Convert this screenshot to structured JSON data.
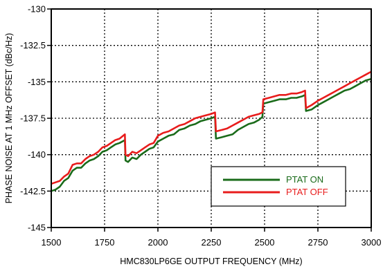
{
  "chart_data": {
    "type": "line",
    "xlabel": "HMC830LP6GE OUTPUT FREQUENCY (MHz)",
    "ylabel": "PHASE NOISE AT 1 MHz OFFSET (dBc/Hz)",
    "xlim": [
      1500,
      3000
    ],
    "ylim": [
      -145,
      -130
    ],
    "x_ticks": [
      1500,
      1750,
      2000,
      2250,
      2500,
      2750,
      3000
    ],
    "y_ticks": [
      -130,
      -132.5,
      -135,
      -137.5,
      -140,
      -142.5,
      -145
    ],
    "x_tick_labels": [
      "1500",
      "1750",
      "2000",
      "2250",
      "2500",
      "2750",
      "3000"
    ],
    "y_tick_labels": [
      "-130",
      "-132.5",
      "-135",
      "-137.5",
      "-140",
      "-142.5",
      "-145"
    ],
    "grid": true,
    "grid_style": "dotted",
    "legend_position": "lower-right",
    "series": [
      {
        "name": "PTAT ON",
        "color": "#1a6b1a",
        "x": [
          1500,
          1520,
          1540,
          1560,
          1580,
          1600,
          1620,
          1640,
          1660,
          1680,
          1700,
          1720,
          1740,
          1760,
          1780,
          1800,
          1820,
          1845,
          1848,
          1860,
          1880,
          1900,
          1920,
          1940,
          1960,
          1980,
          2000,
          2025,
          2050,
          2075,
          2100,
          2125,
          2150,
          2175,
          2200,
          2225,
          2250,
          2268,
          2272,
          2300,
          2325,
          2350,
          2375,
          2400,
          2425,
          2450,
          2475,
          2490,
          2494,
          2520,
          2545,
          2570,
          2600,
          2625,
          2650,
          2675,
          2690,
          2694,
          2720,
          2750,
          2775,
          2800,
          2825,
          2850,
          2875,
          2900,
          2925,
          2950,
          2975,
          3000
        ],
        "values": [
          -142.5,
          -142.4,
          -142.2,
          -141.8,
          -141.6,
          -141.1,
          -140.9,
          -140.9,
          -140.6,
          -140.4,
          -140.3,
          -140.1,
          -139.8,
          -139.7,
          -139.5,
          -139.3,
          -139.2,
          -139.0,
          -140.4,
          -140.5,
          -140.2,
          -140.3,
          -140.0,
          -139.8,
          -139.6,
          -139.5,
          -139.1,
          -138.9,
          -138.7,
          -138.6,
          -138.3,
          -138.2,
          -138.0,
          -137.9,
          -137.7,
          -137.6,
          -137.5,
          -137.4,
          -138.9,
          -138.8,
          -138.7,
          -138.6,
          -138.3,
          -138.1,
          -137.9,
          -137.8,
          -137.6,
          -137.4,
          -136.5,
          -136.4,
          -136.3,
          -136.2,
          -136.2,
          -136.1,
          -136.1,
          -136.0,
          -135.9,
          -137.0,
          -136.9,
          -136.6,
          -136.4,
          -136.2,
          -136.0,
          -135.8,
          -135.6,
          -135.5,
          -135.3,
          -135.1,
          -134.9,
          -134.8
        ]
      },
      {
        "name": "PTAT OFF",
        "color": "#e81c1c",
        "x": [
          1500,
          1520,
          1540,
          1560,
          1580,
          1600,
          1620,
          1640,
          1660,
          1680,
          1700,
          1720,
          1740,
          1760,
          1780,
          1800,
          1820,
          1845,
          1848,
          1860,
          1880,
          1900,
          1920,
          1940,
          1960,
          1980,
          2000,
          2025,
          2050,
          2075,
          2100,
          2125,
          2150,
          2175,
          2200,
          2225,
          2250,
          2268,
          2272,
          2300,
          2325,
          2350,
          2375,
          2400,
          2425,
          2450,
          2475,
          2490,
          2494,
          2520,
          2545,
          2570,
          2600,
          2625,
          2650,
          2675,
          2690,
          2694,
          2720,
          2750,
          2775,
          2800,
          2825,
          2850,
          2875,
          2900,
          2925,
          2950,
          2975,
          3000
        ],
        "values": [
          -142.0,
          -141.9,
          -141.8,
          -141.5,
          -141.3,
          -140.7,
          -140.6,
          -140.6,
          -140.3,
          -140.1,
          -140.0,
          -139.8,
          -139.5,
          -139.4,
          -139.2,
          -139.0,
          -138.9,
          -138.6,
          -140.0,
          -140.1,
          -139.8,
          -139.9,
          -139.7,
          -139.5,
          -139.3,
          -139.2,
          -138.7,
          -138.5,
          -138.4,
          -138.2,
          -138.0,
          -137.9,
          -137.7,
          -137.5,
          -137.4,
          -137.3,
          -137.2,
          -137.1,
          -138.4,
          -138.3,
          -138.2,
          -138.0,
          -137.8,
          -137.6,
          -137.4,
          -137.3,
          -137.2,
          -137.1,
          -136.2,
          -136.1,
          -136.0,
          -135.9,
          -135.9,
          -135.8,
          -135.8,
          -135.7,
          -135.6,
          -136.8,
          -136.6,
          -136.3,
          -136.1,
          -135.9,
          -135.7,
          -135.5,
          -135.3,
          -135.1,
          -134.9,
          -134.7,
          -134.5,
          -134.3
        ]
      }
    ]
  }
}
